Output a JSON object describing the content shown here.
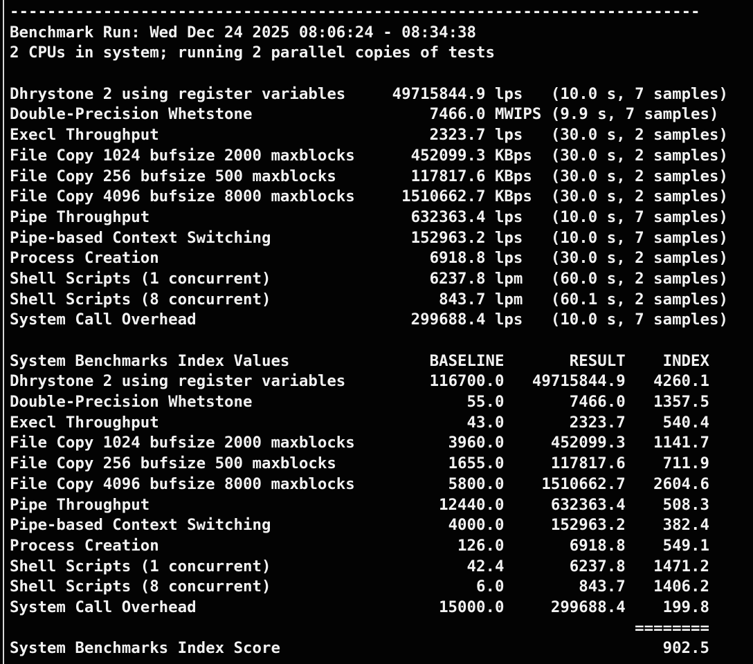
{
  "colors": {
    "background": "#030303",
    "text": "#f2f2f2",
    "border_left": "#d9d9d9"
  },
  "divider": "--------------------------------------------------------------------------",
  "header": {
    "run_line": "Benchmark Run: Wed Dec 24 2025 08:06:24 - 08:34:38",
    "cpu_line": "2 CPUs in system; running 2 parallel copies of tests"
  },
  "results": {
    "rows": [
      {
        "name": "Dhrystone 2 using register variables",
        "value": "49715844.9",
        "unit": "lps",
        "detail": "(10.0 s, 7 samples)"
      },
      {
        "name": "Double-Precision Whetstone",
        "value": "7466.0",
        "unit": "MWIPS",
        "detail": "(9.9 s, 7 samples)"
      },
      {
        "name": "Execl Throughput",
        "value": "2323.7",
        "unit": "lps",
        "detail": "(30.0 s, 2 samples)"
      },
      {
        "name": "File Copy 1024 bufsize 2000 maxblocks",
        "value": "452099.3",
        "unit": "KBps",
        "detail": "(30.0 s, 2 samples)"
      },
      {
        "name": "File Copy 256 bufsize 500 maxblocks",
        "value": "117817.6",
        "unit": "KBps",
        "detail": "(30.0 s, 2 samples)"
      },
      {
        "name": "File Copy 4096 bufsize 8000 maxblocks",
        "value": "1510662.7",
        "unit": "KBps",
        "detail": "(30.0 s, 2 samples)"
      },
      {
        "name": "Pipe Throughput",
        "value": "632363.4",
        "unit": "lps",
        "detail": "(10.0 s, 7 samples)"
      },
      {
        "name": "Pipe-based Context Switching",
        "value": "152963.2",
        "unit": "lps",
        "detail": "(10.0 s, 7 samples)"
      },
      {
        "name": "Process Creation",
        "value": "6918.8",
        "unit": "lps",
        "detail": "(30.0 s, 2 samples)"
      },
      {
        "name": "Shell Scripts (1 concurrent)",
        "value": "6237.8",
        "unit": "lpm",
        "detail": "(60.0 s, 2 samples)"
      },
      {
        "name": "Shell Scripts (8 concurrent)",
        "value": "843.7",
        "unit": "lpm",
        "detail": "(60.1 s, 2 samples)"
      },
      {
        "name": "System Call Overhead",
        "value": "299688.4",
        "unit": "lps",
        "detail": "(10.0 s, 7 samples)"
      }
    ]
  },
  "index": {
    "title": "System Benchmarks Index Values",
    "col_baseline": "BASELINE",
    "col_result": "RESULT",
    "col_index": "INDEX",
    "rows": [
      {
        "name": "Dhrystone 2 using register variables",
        "baseline": "116700.0",
        "result": "49715844.9",
        "index": "4260.1"
      },
      {
        "name": "Double-Precision Whetstone",
        "baseline": "55.0",
        "result": "7466.0",
        "index": "1357.5"
      },
      {
        "name": "Execl Throughput",
        "baseline": "43.0",
        "result": "2323.7",
        "index": "540.4"
      },
      {
        "name": "File Copy 1024 bufsize 2000 maxblocks",
        "baseline": "3960.0",
        "result": "452099.3",
        "index": "1141.7"
      },
      {
        "name": "File Copy 256 bufsize 500 maxblocks",
        "baseline": "1655.0",
        "result": "117817.6",
        "index": "711.9"
      },
      {
        "name": "File Copy 4096 bufsize 8000 maxblocks",
        "baseline": "5800.0",
        "result": "1510662.7",
        "index": "2604.6"
      },
      {
        "name": "Pipe Throughput",
        "baseline": "12440.0",
        "result": "632363.4",
        "index": "508.3"
      },
      {
        "name": "Pipe-based Context Switching",
        "baseline": "4000.0",
        "result": "152963.2",
        "index": "382.4"
      },
      {
        "name": "Process Creation",
        "baseline": "126.0",
        "result": "6918.8",
        "index": "549.1"
      },
      {
        "name": "Shell Scripts (1 concurrent)",
        "baseline": "42.4",
        "result": "6237.8",
        "index": "1471.2"
      },
      {
        "name": "Shell Scripts (8 concurrent)",
        "baseline": "6.0",
        "result": "843.7",
        "index": "1406.2"
      },
      {
        "name": "System Call Overhead",
        "baseline": "15000.0",
        "result": "299688.4",
        "index": "199.8"
      }
    ],
    "separator": "========",
    "score_label": "System Benchmarks Index Score",
    "score": "902.5"
  }
}
